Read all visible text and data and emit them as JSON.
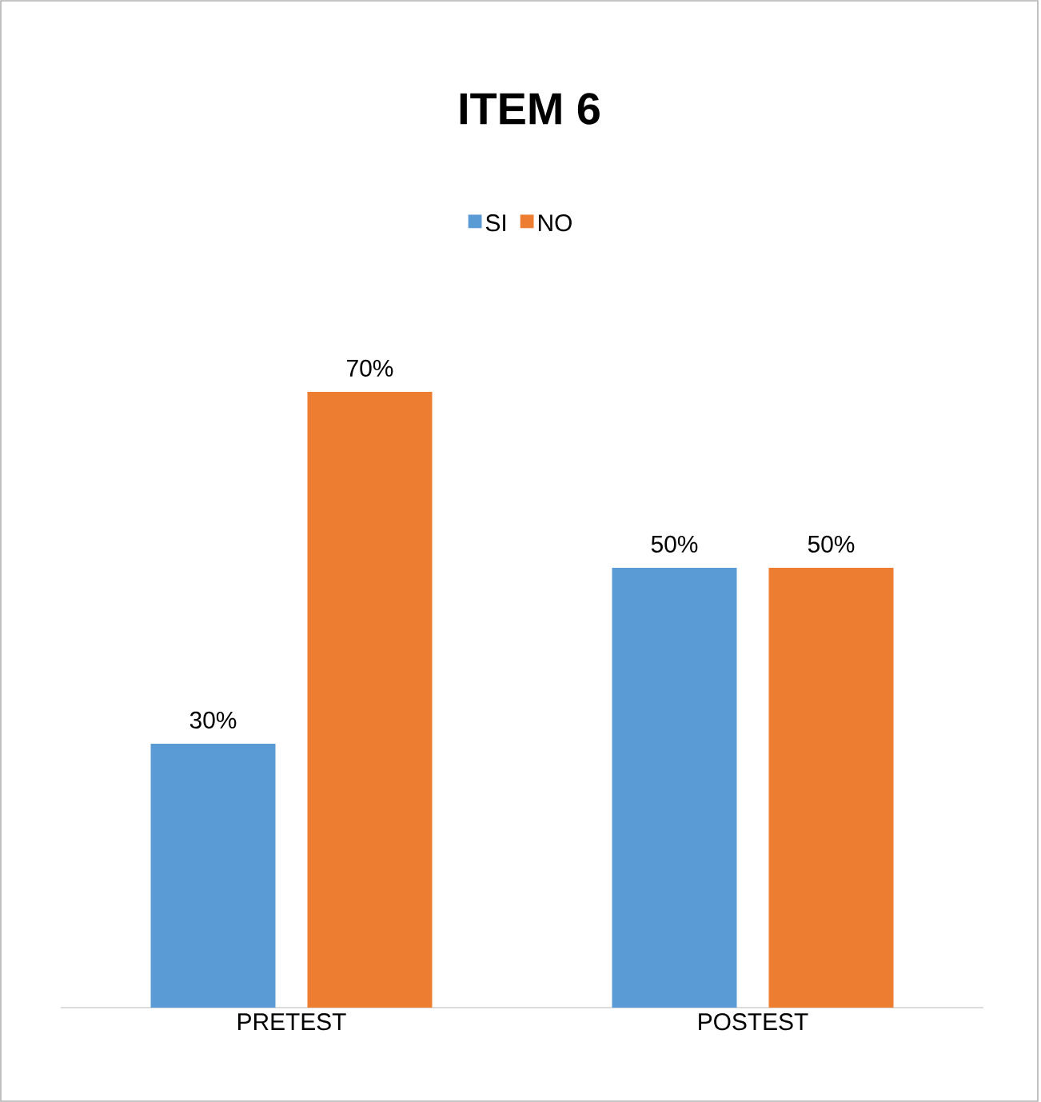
{
  "chart_data": {
    "type": "bar",
    "title": "ITEM 6",
    "categories": [
      "PRETEST",
      "POSTEST"
    ],
    "series": [
      {
        "name": "SI",
        "color": "#5b9bd5",
        "values": [
          30,
          50
        ],
        "value_labels": [
          "30%",
          "50%"
        ]
      },
      {
        "name": "NO",
        "color": "#ed7d31",
        "values": [
          70,
          50
        ],
        "value_labels": [
          "70%",
          "50%"
        ]
      }
    ],
    "legend": "top"
  }
}
